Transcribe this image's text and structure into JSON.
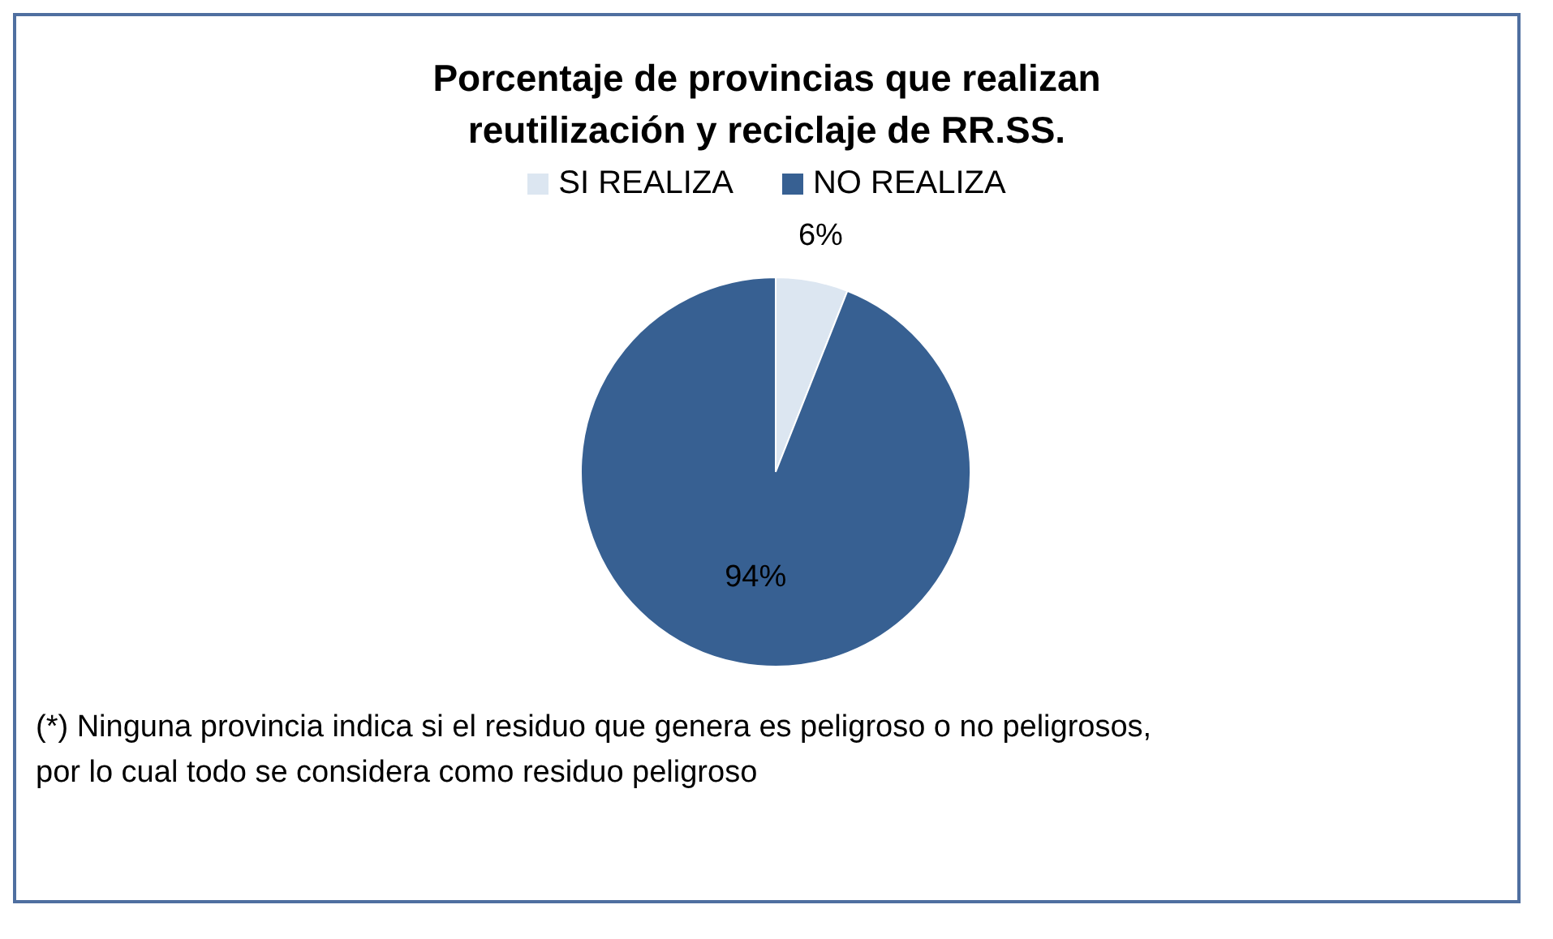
{
  "chart_data": {
    "type": "pie",
    "title": "Porcentaje de provincias que realizan reutilización y reciclaje de RR.SS.",
    "categories": [
      "SI REALIZA",
      "NO REALIZA"
    ],
    "values": [
      6,
      94
    ],
    "colors": [
      "#dce6f1",
      "#376092"
    ],
    "value_labels": [
      "6%",
      "94%"
    ],
    "legend": "top",
    "annotations": [
      "(*) Ninguna provincia indica si el residuo que genera es peligroso o no peligrosos, por lo cual todo se considera como residuo peligroso"
    ]
  }
}
